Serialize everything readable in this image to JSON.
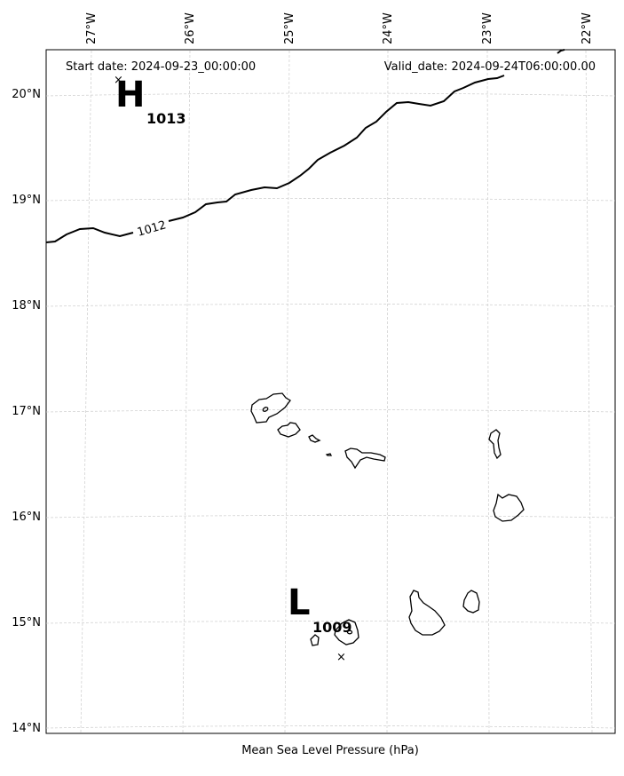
{
  "map": {
    "start_date": "Start date: 2024-09-23_00:00:00",
    "valid_date": "Valid_date: 2024-09-24T06:00:00.00",
    "xlabel": "Mean Sea Level Pressure (hPa)",
    "lon_ticks": [
      "27°W",
      "26°W",
      "25°W",
      "24°W",
      "23°W",
      "22°W"
    ],
    "lat_ticks": [
      "20°N",
      "19°N",
      "18°N",
      "17°N",
      "16°N",
      "15°N",
      "14°N"
    ],
    "high": {
      "letter": "H",
      "value": "1013"
    },
    "low": {
      "letter": "L",
      "value": "1009"
    },
    "isobar_label": "1012",
    "colors": {
      "isobar": "#000000",
      "coast": "#000000",
      "grid": "#cccccc"
    }
  }
}
